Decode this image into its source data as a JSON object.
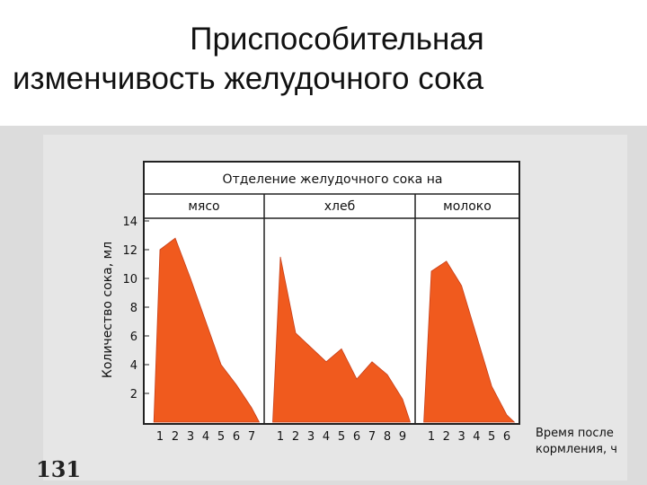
{
  "slide": {
    "title_line1": "Приспособительная",
    "title_line2": "изменчивость желудочного сока"
  },
  "page_number": "131",
  "chart_data": {
    "type": "area",
    "title": "Отделение желудочного сока на",
    "ylabel": "Количество сока, мл",
    "xlabel_line1": "Время после",
    "xlabel_line2": "кормления, ч",
    "ylim": [
      0,
      14
    ],
    "y_ticks": [
      2,
      4,
      6,
      8,
      10,
      12,
      14
    ],
    "fill_color": "#f05a1e",
    "panels": [
      {
        "name": "мясо",
        "x_ticks": [
          "1",
          "2",
          "3",
          "4",
          "5",
          "6",
          "7"
        ],
        "x": [
          0.6,
          1,
          2,
          3,
          4,
          5,
          6,
          7,
          7.5
        ],
        "y": [
          0,
          12,
          12.8,
          10,
          7,
          4,
          2.6,
          1,
          0
        ]
      },
      {
        "name": "хлеб",
        "x_ticks": [
          "1",
          "2",
          "3",
          "4",
          "5",
          "6",
          "7",
          "8",
          "9"
        ],
        "x": [
          0.5,
          1,
          2,
          3,
          4,
          5,
          6,
          7,
          8,
          9,
          9.5
        ],
        "y": [
          0,
          11.5,
          6.2,
          5.2,
          4.2,
          5.1,
          3,
          4.2,
          3.3,
          1.6,
          0
        ]
      },
      {
        "name": "молоко",
        "x_ticks": [
          "1",
          "2",
          "3",
          "4",
          "5",
          "6"
        ],
        "x": [
          0.5,
          1,
          2,
          3,
          4,
          5,
          6,
          6.5
        ],
        "y": [
          0,
          10.5,
          11.2,
          9.5,
          6,
          2.5,
          0.5,
          0
        ]
      }
    ]
  }
}
